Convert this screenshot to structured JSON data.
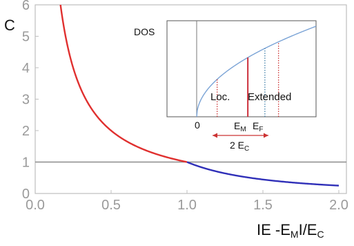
{
  "chart_data": [
    {
      "type": "line",
      "ylabel": "C",
      "xlim": [
        0,
        2.05
      ],
      "ylim": [
        0,
        6
      ],
      "xticks": [
        "0.0",
        "0.5",
        "1.0",
        "1.5",
        "2.0"
      ],
      "yticks": [
        "0",
        "1",
        "2",
        "3",
        "4",
        "5",
        "6"
      ],
      "xlabel_parts": {
        "main": "IE -E",
        "sub1": "M",
        "mid": "I/E",
        "sub2": "C"
      },
      "series": [
        {
          "color": "#e0302f",
          "x_range": [
            0.07,
            1.0
          ],
          "formula": "1/x"
        },
        {
          "color": "#2f2fb8",
          "x_range": [
            1.0,
            2.0
          ],
          "formula": "1/x^2"
        }
      ],
      "reference_line": {
        "y": 1,
        "color": "#8a8a8a"
      },
      "colors": {
        "frame": "#bfbfbf",
        "tick_label": "#9a9a9a"
      }
    },
    {
      "type": "line",
      "ylabel": "DOS",
      "curve": {
        "formula": "sqrt(E)",
        "color": "#7aa3d6"
      },
      "markers": [
        {
          "label": "",
          "style": "dotted",
          "color": "#cc3333",
          "x": 0.3
        },
        {
          "label": "E",
          "sub": "M",
          "style": "solid",
          "color": "#cc2f3a",
          "x": 0.75
        },
        {
          "label": "E",
          "sub": "F",
          "style": "dotted",
          "color": "#3f7fa8",
          "x": 1.0
        },
        {
          "label": "",
          "style": "dotted",
          "color": "#cc3333",
          "x": 1.2
        }
      ],
      "origin_label": "0",
      "region_labels": {
        "localized": "Loc.",
        "extended": "Extended"
      },
      "range_label": {
        "main": "2 E",
        "sub": "C"
      }
    }
  ]
}
